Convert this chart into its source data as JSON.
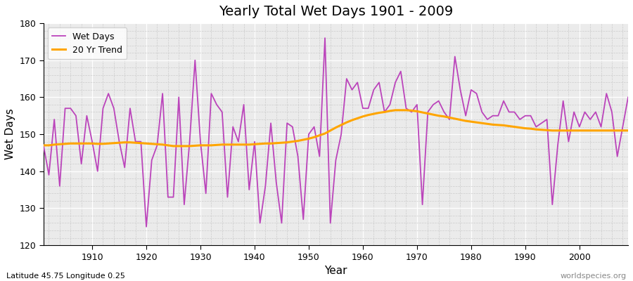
{
  "title": "Yearly Total Wet Days 1901 - 2009",
  "xlabel": "Year",
  "ylabel": "Wet Days",
  "subtitle": "Latitude 45.75 Longitude 0.25",
  "watermark": "worldspecies.org",
  "wet_days_color": "#BB44BB",
  "trend_color": "#FFA500",
  "background_color": "#EBEBEB",
  "ylim": [
    120,
    180
  ],
  "years": [
    1901,
    1902,
    1903,
    1904,
    1905,
    1906,
    1907,
    1908,
    1909,
    1910,
    1911,
    1912,
    1913,
    1914,
    1915,
    1916,
    1917,
    1918,
    1919,
    1920,
    1921,
    1922,
    1923,
    1924,
    1925,
    1926,
    1927,
    1928,
    1929,
    1930,
    1931,
    1932,
    1933,
    1934,
    1935,
    1936,
    1937,
    1938,
    1939,
    1940,
    1941,
    1942,
    1943,
    1944,
    1945,
    1946,
    1947,
    1948,
    1949,
    1950,
    1951,
    1952,
    1953,
    1954,
    1955,
    1956,
    1957,
    1958,
    1959,
    1960,
    1961,
    1962,
    1963,
    1964,
    1965,
    1966,
    1967,
    1968,
    1969,
    1970,
    1971,
    1972,
    1973,
    1974,
    1975,
    1976,
    1977,
    1978,
    1979,
    1980,
    1981,
    1982,
    1983,
    1984,
    1985,
    1986,
    1987,
    1988,
    1989,
    1990,
    1991,
    1992,
    1993,
    1994,
    1995,
    1996,
    1997,
    1998,
    1999,
    2000,
    2001,
    2002,
    2003,
    2004,
    2005,
    2006,
    2007,
    2008,
    2009
  ],
  "wet_days": [
    147,
    139,
    154,
    136,
    157,
    157,
    155,
    142,
    155,
    148,
    140,
    157,
    161,
    157,
    148,
    141,
    157,
    148,
    148,
    125,
    143,
    147,
    161,
    133,
    133,
    160,
    131,
    148,
    170,
    148,
    134,
    161,
    158,
    156,
    133,
    152,
    148,
    158,
    135,
    148,
    126,
    136,
    153,
    137,
    126,
    153,
    152,
    144,
    127,
    150,
    152,
    144,
    176,
    126,
    143,
    150,
    165,
    162,
    164,
    157,
    157,
    162,
    164,
    156,
    158,
    164,
    167,
    157,
    156,
    158,
    131,
    156,
    158,
    159,
    156,
    154,
    171,
    162,
    155,
    162,
    161,
    156,
    154,
    155,
    155,
    159,
    156,
    156,
    154,
    155,
    155,
    152,
    153,
    154,
    131,
    147,
    159,
    148,
    156,
    152,
    156,
    154,
    156,
    152,
    161,
    156,
    144,
    152,
    160
  ],
  "trend": [
    147.0,
    147.0,
    147.2,
    147.3,
    147.4,
    147.5,
    147.5,
    147.5,
    147.5,
    147.5,
    147.4,
    147.4,
    147.5,
    147.6,
    147.7,
    147.8,
    147.8,
    147.7,
    147.6,
    147.5,
    147.4,
    147.3,
    147.2,
    147.0,
    146.8,
    146.8,
    146.8,
    146.8,
    146.9,
    147.0,
    147.0,
    147.0,
    147.1,
    147.2,
    147.2,
    147.2,
    147.2,
    147.2,
    147.2,
    147.3,
    147.4,
    147.5,
    147.5,
    147.6,
    147.7,
    147.8,
    148.0,
    148.2,
    148.5,
    148.8,
    149.2,
    149.7,
    150.2,
    151.0,
    151.8,
    152.5,
    153.2,
    153.8,
    154.3,
    154.8,
    155.2,
    155.5,
    155.8,
    156.0,
    156.3,
    156.5,
    156.5,
    156.5,
    156.4,
    156.2,
    155.9,
    155.6,
    155.3,
    155.0,
    154.8,
    154.5,
    154.2,
    153.9,
    153.6,
    153.4,
    153.2,
    153.0,
    152.8,
    152.6,
    152.5,
    152.4,
    152.2,
    152.0,
    151.8,
    151.6,
    151.5,
    151.3,
    151.2,
    151.1,
    151.0,
    151.0,
    151.0,
    151.0,
    151.0,
    151.0,
    151.0,
    151.0,
    151.0,
    151.0,
    151.0,
    151.0,
    151.0,
    151.0,
    151.0
  ]
}
